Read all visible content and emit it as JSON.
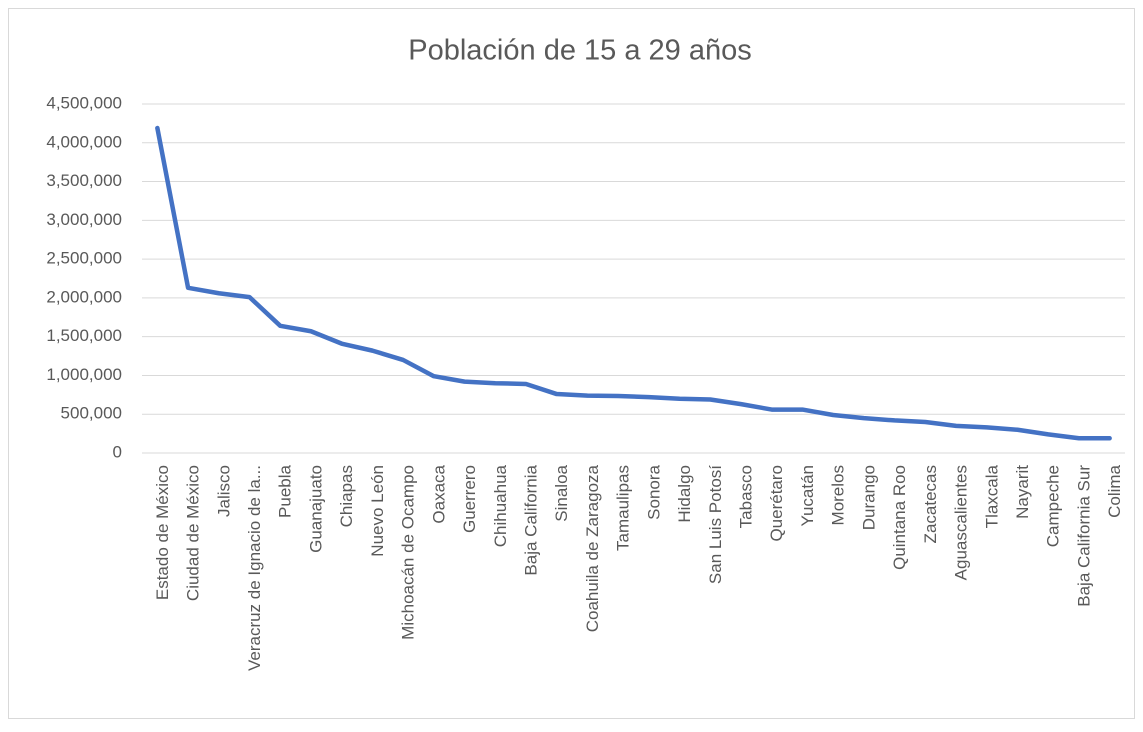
{
  "chart_data": {
    "type": "line",
    "title": "Población de 15 a 29 años",
    "categories": [
      "Estado de México",
      "Ciudad de México",
      "Jalisco",
      "Veracruz de Ignacio de la...",
      "Puebla",
      "Guanajuato",
      "Chiapas",
      "Nuevo León",
      "Michoacán de Ocampo",
      "Oaxaca",
      "Guerrero",
      "Chihuahua",
      "Baja California",
      "Sinaloa",
      "Coahuila de Zaragoza",
      "Tamaulipas",
      "Sonora",
      "Hidalgo",
      "San Luis Potosí",
      "Tabasco",
      "Querétaro",
      "Yucatán",
      "Morelos",
      "Durango",
      "Quintana Roo",
      "Zacatecas",
      "Aguascalientes",
      "Tlaxcala",
      "Nayarit",
      "Campeche",
      "Baja California Sur",
      "Colima"
    ],
    "values": [
      4190000,
      2130000,
      2060000,
      2010000,
      1640000,
      1570000,
      1410000,
      1320000,
      1200000,
      990000,
      920000,
      900000,
      890000,
      760000,
      740000,
      735000,
      720000,
      700000,
      690000,
      630000,
      560000,
      560000,
      490000,
      450000,
      420000,
      400000,
      350000,
      330000,
      300000,
      240000,
      190000,
      190000
    ],
    "color": "#4472c4",
    "ylim": [
      0,
      4500000
    ],
    "yticks": [
      0,
      {
        "value": 500000,
        "label": "500,000"
      },
      {
        "value": 1000000,
        "label": "1,000,000"
      },
      {
        "value": 1500000,
        "label": "1,500,000"
      },
      {
        "value": 2000000,
        "label": "2,000,000"
      },
      {
        "value": 2500000,
        "label": "2,500,000"
      },
      {
        "value": 3000000,
        "label": "3,000,000"
      },
      {
        "value": 3500000,
        "label": "3,500,000"
      },
      {
        "value": 4000000,
        "label": "4,000,000"
      },
      {
        "value": 4500000,
        "label": "4,500,000"
      }
    ],
    "grid": true
  }
}
